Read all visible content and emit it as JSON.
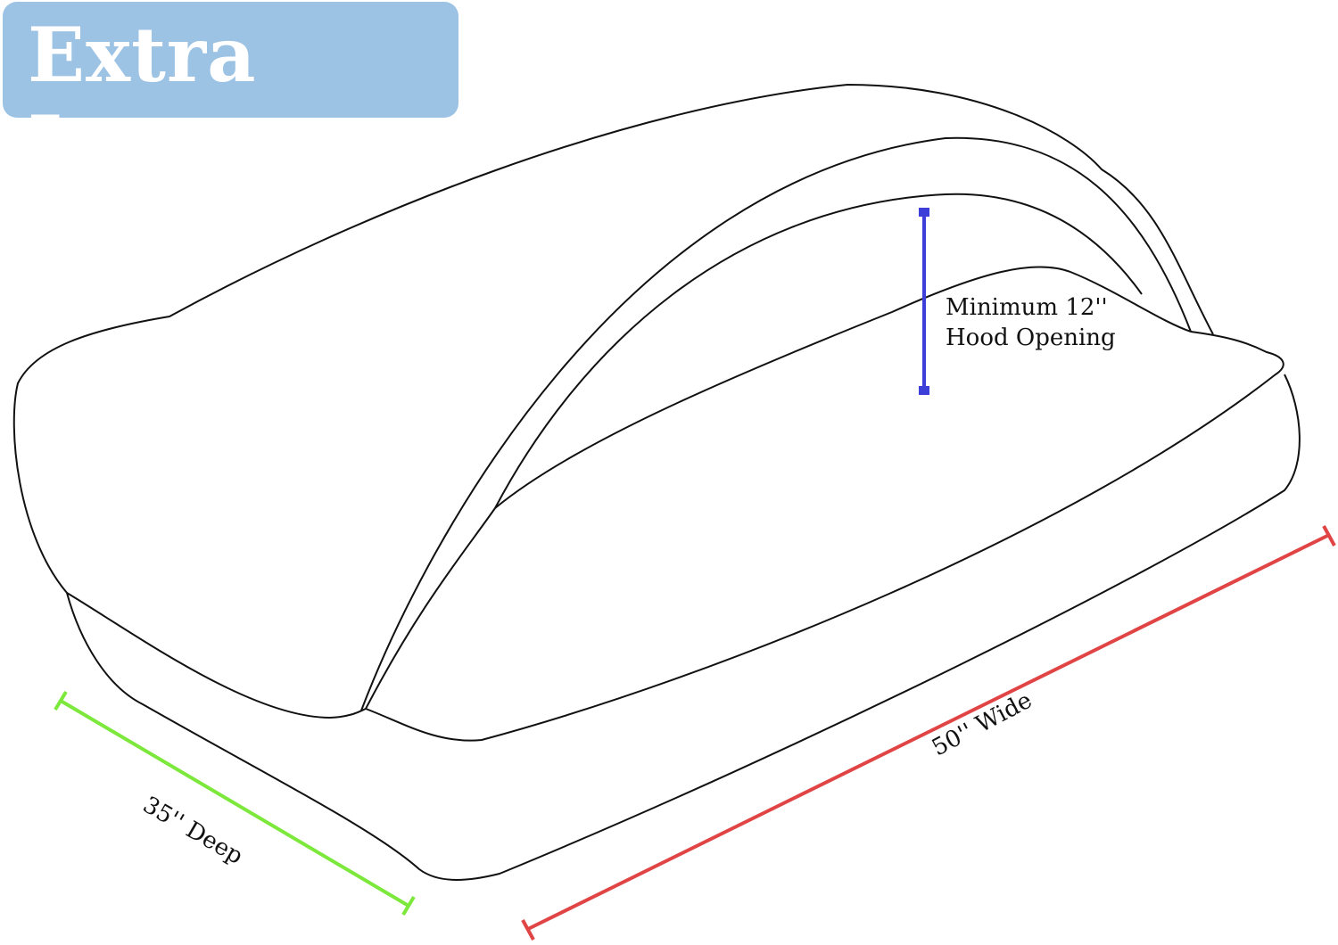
{
  "badge": {
    "label": "Extra Large",
    "color": "#9cc2e4"
  },
  "dimensions": {
    "hood": {
      "line1": "Minimum 12''",
      "line2": "Hood Opening",
      "color": "#3d3fd8"
    },
    "wide": {
      "label": "50'' Wide",
      "color": "#e04444"
    },
    "deep": {
      "label": "35'' Deep",
      "color": "#7de83c"
    }
  }
}
